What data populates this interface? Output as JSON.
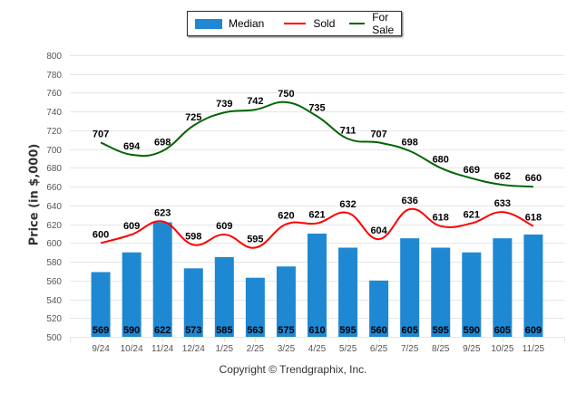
{
  "chart_data": {
    "type": "bar",
    "title": "",
    "xlabel": "",
    "ylabel": "Price (in $,000)",
    "ylim": [
      500,
      800
    ],
    "yticks": [
      500,
      520,
      540,
      560,
      580,
      600,
      620,
      640,
      660,
      680,
      700,
      720,
      740,
      760,
      780,
      800
    ],
    "grid": true,
    "legend_position": "top-center",
    "categories": [
      "9/24",
      "10/24",
      "11/24",
      "12/24",
      "1/25",
      "2/25",
      "3/25",
      "4/25",
      "5/25",
      "6/25",
      "7/25",
      "8/25",
      "9/25",
      "10/25",
      "11/25"
    ],
    "series": [
      {
        "name": "Median",
        "type": "bar",
        "color": "#1f88d2",
        "values": [
          569,
          590,
          622,
          573,
          585,
          563,
          575,
          610,
          595,
          560,
          605,
          595,
          590,
          605,
          609
        ]
      },
      {
        "name": "Sold",
        "type": "line",
        "color": "#ff0000",
        "values": [
          600,
          609,
          623,
          598,
          609,
          595,
          620,
          621,
          632,
          604,
          636,
          618,
          621,
          633,
          618
        ]
      },
      {
        "name": "For Sale",
        "type": "line",
        "color": "#006400",
        "values": [
          707,
          694,
          698,
          725,
          739,
          742,
          750,
          735,
          711,
          707,
          698,
          680,
          669,
          662,
          660
        ]
      }
    ]
  },
  "legend": {
    "median": "Median",
    "sold": "Sold",
    "for_sale": "For Sale"
  },
  "footer": "Copyright © Trendgraphix, Inc."
}
